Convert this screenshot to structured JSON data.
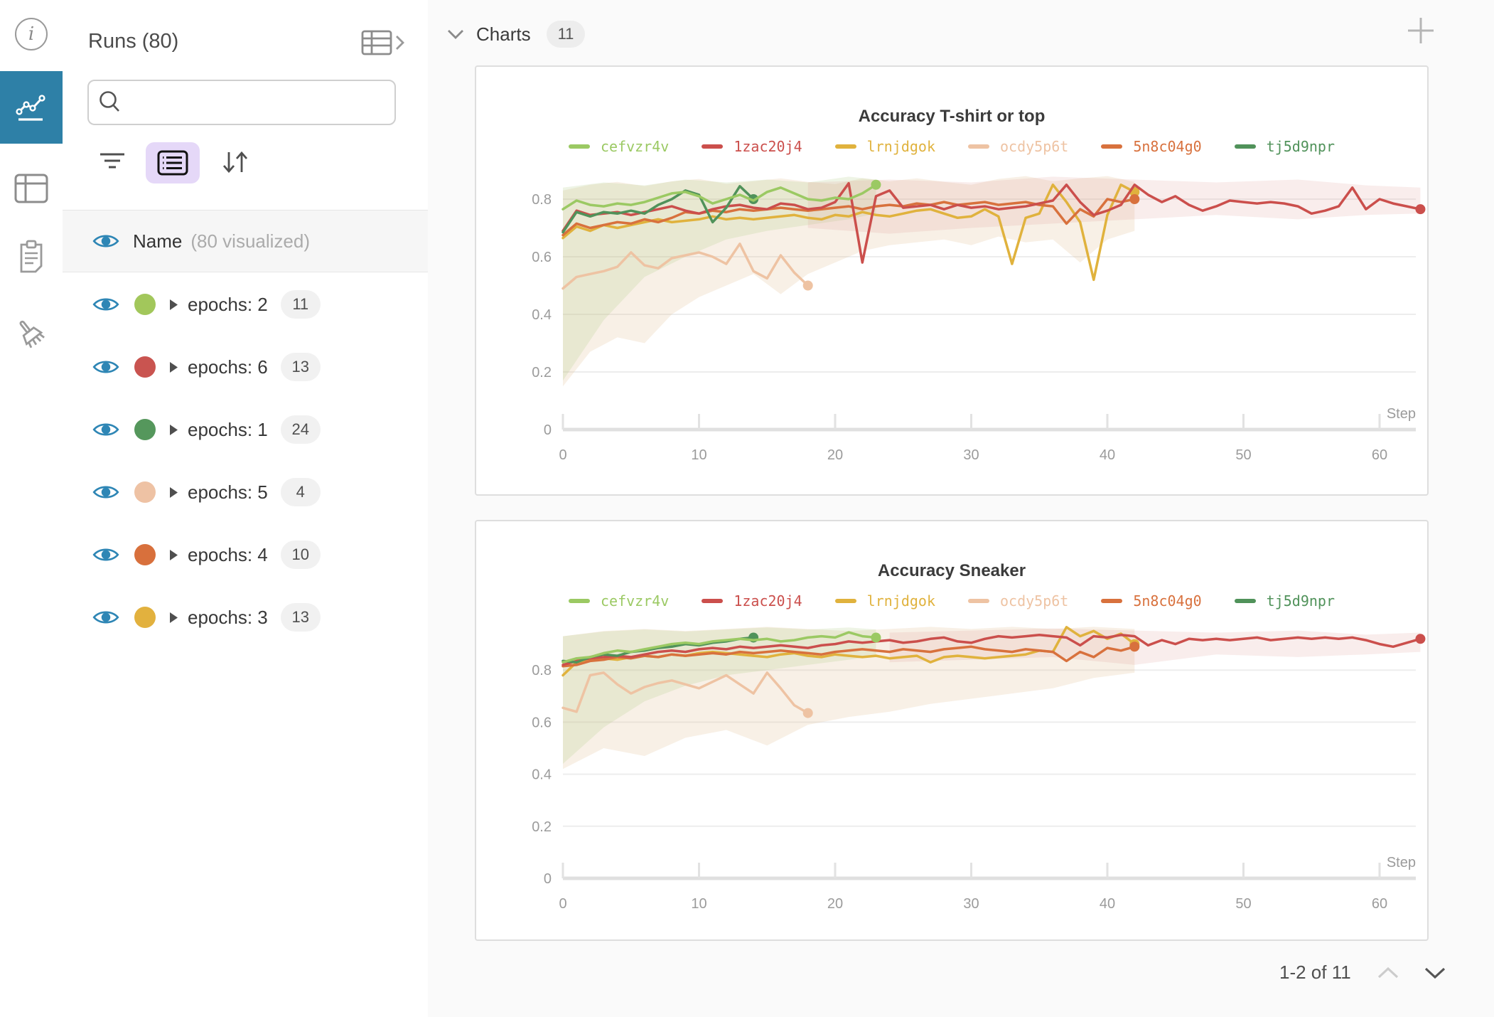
{
  "colors": {
    "accent_blue": "#2e80a7",
    "eye_blue": "#2e86b5",
    "purple_button_bg": "#e5d8f8",
    "panel_border": "#dedede",
    "grid_line": "#ededed",
    "axis_line": "#e0e0e0",
    "muted_text": "#9b9b9b"
  },
  "runs_panel": {
    "title": "Runs (80)",
    "search_value": "",
    "name_header": {
      "label": "Name",
      "note": "(80 visualized)"
    },
    "rows": [
      {
        "label": "epochs: 2",
        "count": "11",
        "color": "#a2c75b"
      },
      {
        "label": "epochs: 6",
        "count": "13",
        "color": "#c95450"
      },
      {
        "label": "epochs: 1",
        "count": "24",
        "color": "#55975c"
      },
      {
        "label": "epochs: 5",
        "count": "4",
        "color": "#eec2a4"
      },
      {
        "label": "epochs: 4",
        "count": "10",
        "color": "#d8703c"
      },
      {
        "label": "epochs: 3",
        "count": "13",
        "color": "#e2b13e"
      }
    ]
  },
  "charts_section": {
    "title": "Charts",
    "badge": "11",
    "pagination": {
      "label": "1-2 of 11"
    }
  },
  "chart_data": [
    {
      "type": "line",
      "title": "Accuracy T-shirt or top",
      "xlabel": "Step",
      "x_ticks": [
        0,
        10,
        20,
        30,
        40,
        50,
        60
      ],
      "y_ticks": [
        0,
        0.2,
        0.4,
        0.6,
        0.8
      ],
      "xlim": [
        0,
        63
      ],
      "ylim": [
        0,
        0.91
      ],
      "grid": true,
      "legend_position": "top",
      "series": [
        {
          "name": "cefvzr4v",
          "color": "#9bc963",
          "x0": 0,
          "values": [
            0.765,
            0.795,
            0.78,
            0.775,
            0.785,
            0.78,
            0.79,
            0.805,
            0.82,
            0.825,
            0.81,
            0.785,
            0.8,
            0.815,
            0.795,
            0.825,
            0.84,
            0.82,
            0.8,
            0.795,
            0.805,
            0.8,
            0.82,
            0.85
          ]
        },
        {
          "name": "1zac20j4",
          "color": "#cb4f4c",
          "x0": 0,
          "values": [
            0.69,
            0.76,
            0.745,
            0.75,
            0.755,
            0.745,
            0.755,
            0.765,
            0.775,
            0.76,
            0.75,
            0.765,
            0.775,
            0.78,
            0.77,
            0.765,
            0.785,
            0.78,
            0.765,
            0.77,
            0.79,
            0.855,
            0.58,
            0.81,
            0.83,
            0.77,
            0.775,
            0.78,
            0.765,
            0.78,
            0.77,
            0.775,
            0.765,
            0.77,
            0.775,
            0.785,
            0.795,
            0.85,
            0.79,
            0.745,
            0.76,
            0.78,
            0.85,
            0.815,
            0.79,
            0.81,
            0.78,
            0.76,
            0.775,
            0.795,
            0.79,
            0.785,
            0.79,
            0.785,
            0.775,
            0.75,
            0.76,
            0.775,
            0.84,
            0.765,
            0.8,
            0.785,
            0.775,
            0.765
          ]
        },
        {
          "name": "lrnjdgok",
          "color": "#e0b23d",
          "x0": 0,
          "values": [
            0.665,
            0.705,
            0.69,
            0.71,
            0.7,
            0.71,
            0.72,
            0.73,
            0.72,
            0.725,
            0.73,
            0.74,
            0.73,
            0.735,
            0.73,
            0.735,
            0.74,
            0.745,
            0.735,
            0.73,
            0.745,
            0.74,
            0.755,
            0.745,
            0.74,
            0.75,
            0.76,
            0.765,
            0.75,
            0.735,
            0.74,
            0.765,
            0.74,
            0.575,
            0.735,
            0.75,
            0.85,
            0.79,
            0.72,
            0.52,
            0.745,
            0.85,
            0.825
          ]
        },
        {
          "name": "ocdy5p6t",
          "color": "#eec3a3",
          "x0": 0,
          "values": [
            0.49,
            0.53,
            0.54,
            0.55,
            0.565,
            0.615,
            0.57,
            0.56,
            0.595,
            0.605,
            0.615,
            0.6,
            0.575,
            0.645,
            0.55,
            0.525,
            0.605,
            0.545,
            0.5
          ]
        },
        {
          "name": "5n8c04g0",
          "color": "#d8713d",
          "x0": 0,
          "values": [
            0.675,
            0.715,
            0.7,
            0.71,
            0.72,
            0.715,
            0.73,
            0.72,
            0.735,
            0.755,
            0.75,
            0.76,
            0.755,
            0.765,
            0.76,
            0.765,
            0.77,
            0.765,
            0.76,
            0.765,
            0.77,
            0.775,
            0.765,
            0.775,
            0.78,
            0.775,
            0.785,
            0.78,
            0.79,
            0.78,
            0.785,
            0.79,
            0.78,
            0.785,
            0.79,
            0.78,
            0.775,
            0.715,
            0.765,
            0.74,
            0.8,
            0.79,
            0.8
          ]
        },
        {
          "name": "tj5d9npr",
          "color": "#50925a",
          "x0": 0,
          "values": [
            0.685,
            0.755,
            0.74,
            0.755,
            0.75,
            0.76,
            0.75,
            0.78,
            0.8,
            0.83,
            0.815,
            0.72,
            0.77,
            0.845,
            0.8
          ]
        }
      ],
      "bands": [
        {
          "color": "#ddb98f",
          "opacity": 0.22,
          "x": [
            0,
            2,
            4,
            6,
            8,
            10,
            12,
            14,
            16,
            18,
            20,
            22,
            24,
            26,
            28,
            30,
            32,
            34,
            36,
            38,
            40,
            42
          ],
          "min": [
            0.15,
            0.27,
            0.32,
            0.3,
            0.4,
            0.46,
            0.5,
            0.54,
            0.47,
            0.54,
            0.58,
            0.62,
            0.64,
            0.65,
            0.66,
            0.64,
            0.67,
            0.65,
            0.66,
            0.58,
            0.66,
            0.69
          ],
          "max": [
            0.83,
            0.85,
            0.86,
            0.845,
            0.862,
            0.87,
            0.853,
            0.862,
            0.872,
            0.86,
            0.852,
            0.872,
            0.862,
            0.872,
            0.86,
            0.85,
            0.87,
            0.88,
            0.862,
            0.872,
            0.88,
            0.86
          ]
        },
        {
          "color": "#a9c87f",
          "opacity": 0.2,
          "x": [
            0,
            3,
            6,
            9,
            12,
            15,
            18,
            21,
            23
          ],
          "min": [
            0.17,
            0.38,
            0.53,
            0.6,
            0.66,
            0.69,
            0.71,
            0.73,
            0.75
          ],
          "max": [
            0.84,
            0.858,
            0.848,
            0.868,
            0.858,
            0.868,
            0.858,
            0.878,
            0.868
          ]
        },
        {
          "color": "#dd9b94",
          "opacity": 0.18,
          "x": [
            18,
            24,
            30,
            36,
            42,
            48,
            54,
            59,
            63
          ],
          "min": [
            0.7,
            0.68,
            0.7,
            0.715,
            0.73,
            0.745,
            0.73,
            0.745,
            0.75
          ],
          "max": [
            0.858,
            0.868,
            0.858,
            0.878,
            0.868,
            0.858,
            0.868,
            0.848,
            0.84
          ]
        }
      ]
    },
    {
      "type": "line",
      "title": "Accuracy Sneaker",
      "xlabel": "Step",
      "x_ticks": [
        0,
        10,
        20,
        30,
        40,
        50,
        60
      ],
      "y_ticks": [
        0,
        0.2,
        0.4,
        0.6,
        0.8
      ],
      "xlim": [
        0,
        63
      ],
      "ylim": [
        0,
        0.98
      ],
      "grid": true,
      "legend_position": "top",
      "series": [
        {
          "name": "cefvzr4v",
          "color": "#9bc963",
          "x0": 0,
          "values": [
            0.83,
            0.845,
            0.85,
            0.865,
            0.875,
            0.87,
            0.88,
            0.89,
            0.9,
            0.905,
            0.9,
            0.91,
            0.915,
            0.92,
            0.915,
            0.92,
            0.91,
            0.915,
            0.925,
            0.93,
            0.925,
            0.945,
            0.93,
            0.925
          ]
        },
        {
          "name": "1zac20j4",
          "color": "#cb4f4c",
          "x0": 0,
          "values": [
            0.82,
            0.835,
            0.845,
            0.85,
            0.855,
            0.85,
            0.86,
            0.87,
            0.875,
            0.87,
            0.88,
            0.885,
            0.88,
            0.89,
            0.885,
            0.89,
            0.895,
            0.89,
            0.885,
            0.895,
            0.9,
            0.91,
            0.905,
            0.91,
            0.915,
            0.905,
            0.91,
            0.92,
            0.925,
            0.91,
            0.905,
            0.92,
            0.93,
            0.925,
            0.93,
            0.935,
            0.93,
            0.925,
            0.895,
            0.93,
            0.925,
            0.935,
            0.93,
            0.895,
            0.915,
            0.9,
            0.92,
            0.915,
            0.92,
            0.915,
            0.92,
            0.925,
            0.915,
            0.92,
            0.925,
            0.92,
            0.925,
            0.92,
            0.925,
            0.915,
            0.9,
            0.89,
            0.905,
            0.92
          ]
        },
        {
          "name": "lrnjdgok",
          "color": "#e0b23d",
          "x0": 0,
          "values": [
            0.78,
            0.83,
            0.84,
            0.845,
            0.84,
            0.85,
            0.855,
            0.85,
            0.86,
            0.855,
            0.865,
            0.87,
            0.865,
            0.86,
            0.855,
            0.85,
            0.86,
            0.865,
            0.855,
            0.85,
            0.86,
            0.855,
            0.85,
            0.855,
            0.845,
            0.85,
            0.855,
            0.83,
            0.85,
            0.855,
            0.85,
            0.845,
            0.85,
            0.855,
            0.86,
            0.875,
            0.87,
            0.965,
            0.93,
            0.95,
            0.92,
            0.94,
            0.9
          ]
        },
        {
          "name": "ocdy5p6t",
          "color": "#eec3a3",
          "x0": 0,
          "values": [
            0.655,
            0.64,
            0.78,
            0.79,
            0.745,
            0.71,
            0.735,
            0.75,
            0.76,
            0.745,
            0.73,
            0.755,
            0.78,
            0.745,
            0.71,
            0.79,
            0.73,
            0.665,
            0.635
          ]
        },
        {
          "name": "5n8c04g0",
          "color": "#d8713d",
          "x0": 0,
          "values": [
            0.815,
            0.82,
            0.835,
            0.84,
            0.85,
            0.845,
            0.855,
            0.85,
            0.86,
            0.855,
            0.86,
            0.865,
            0.86,
            0.87,
            0.865,
            0.87,
            0.875,
            0.87,
            0.865,
            0.86,
            0.87,
            0.875,
            0.88,
            0.875,
            0.87,
            0.88,
            0.875,
            0.87,
            0.88,
            0.885,
            0.89,
            0.88,
            0.875,
            0.87,
            0.88,
            0.875,
            0.87,
            0.835,
            0.87,
            0.85,
            0.885,
            0.875,
            0.89
          ]
        },
        {
          "name": "tj5d9npr",
          "color": "#50925a",
          "x0": 0,
          "values": [
            0.835,
            0.83,
            0.85,
            0.86,
            0.855,
            0.87,
            0.875,
            0.885,
            0.89,
            0.9,
            0.895,
            0.905,
            0.91,
            0.92,
            0.925
          ]
        }
      ],
      "bands": [
        {
          "color": "#ddb98f",
          "opacity": 0.22,
          "x": [
            0,
            3,
            6,
            9,
            12,
            15,
            18,
            21,
            24,
            27,
            30,
            33,
            36,
            39,
            42
          ],
          "min": [
            0.42,
            0.5,
            0.47,
            0.54,
            0.57,
            0.51,
            0.59,
            0.62,
            0.64,
            0.67,
            0.69,
            0.71,
            0.73,
            0.77,
            0.79
          ],
          "max": [
            0.93,
            0.95,
            0.958,
            0.95,
            0.958,
            0.966,
            0.958,
            0.95,
            0.958,
            0.966,
            0.958,
            0.966,
            0.958,
            0.966,
            0.958
          ]
        },
        {
          "color": "#a9c87f",
          "opacity": 0.2,
          "x": [
            0,
            3,
            6,
            9,
            12,
            15,
            18,
            21,
            23
          ],
          "min": [
            0.44,
            0.58,
            0.68,
            0.74,
            0.78,
            0.8,
            0.82,
            0.84,
            0.855
          ],
          "max": [
            0.93,
            0.948,
            0.956,
            0.948,
            0.956,
            0.964,
            0.956,
            0.964,
            0.956
          ]
        },
        {
          "color": "#dd9b94",
          "opacity": 0.18,
          "x": [
            24,
            30,
            36,
            42,
            48,
            54,
            59,
            63
          ],
          "min": [
            0.83,
            0.84,
            0.85,
            0.82,
            0.86,
            0.85,
            0.86,
            0.87
          ],
          "max": [
            0.944,
            0.952,
            0.96,
            0.952,
            0.944,
            0.952,
            0.936,
            0.944
          ]
        }
      ]
    }
  ]
}
